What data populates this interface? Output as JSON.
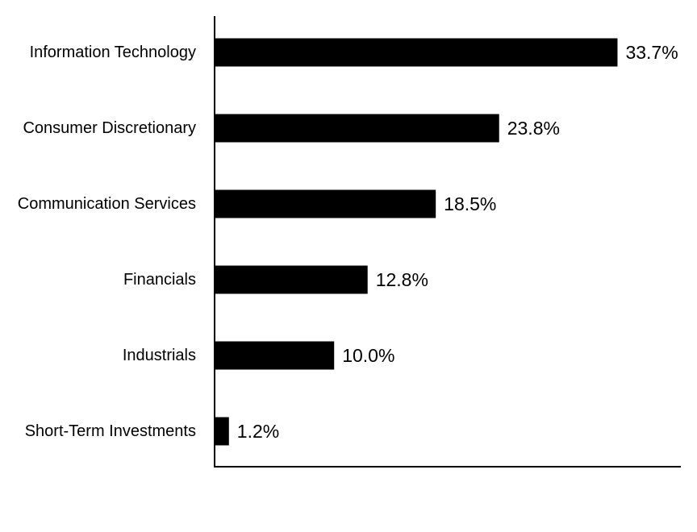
{
  "chart_data": {
    "type": "bar",
    "orientation": "horizontal",
    "categories": [
      "Information Technology",
      "Consumer Discretionary",
      "Communication Services",
      "Financials",
      "Industrials",
      "Short-Term Investments"
    ],
    "values": [
      33.7,
      23.8,
      18.5,
      12.8,
      10.0,
      1.2
    ],
    "value_labels": [
      "33.7%",
      "23.8%",
      "18.5%",
      "12.8%",
      "10.0%",
      "1.2%"
    ],
    "xlim": [
      0,
      39
    ],
    "grid": false,
    "legend": "none",
    "colors": {
      "bar": "#000000",
      "axis": "#000000",
      "background": "#ffffff"
    }
  }
}
